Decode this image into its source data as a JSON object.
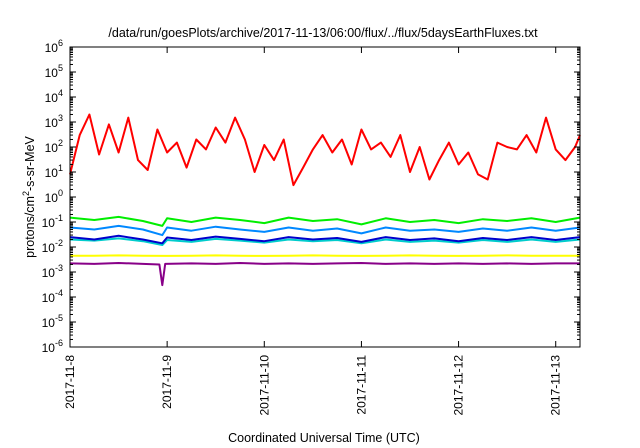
{
  "chart_data": {
    "type": "line",
    "title": "/data/run/goesPlots/archive/2017-11-13/06:00/flux/../flux/5daysEarthFluxes.txt",
    "xlabel": "Coordinated Universal Time (UTC)",
    "ylabel_parts": [
      "protons/cm",
      "2",
      "-s-sr-MeV"
    ],
    "yscale": "log",
    "ylim": [
      1e-06,
      1000000.0
    ],
    "xlim": [
      "2017-11-08",
      "2017-11-13 06:00"
    ],
    "grid": false,
    "legend": "none",
    "y_ticks": [
      {
        "value": 1e-06,
        "base": "10",
        "exp": "-6"
      },
      {
        "value": 1e-05,
        "base": "10",
        "exp": "-5"
      },
      {
        "value": 0.0001,
        "base": "10",
        "exp": "-4"
      },
      {
        "value": 0.001,
        "base": "10",
        "exp": "-3"
      },
      {
        "value": 0.01,
        "base": "10",
        "exp": "-2"
      },
      {
        "value": 0.1,
        "base": "10",
        "exp": "-1"
      },
      {
        "value": 1,
        "base": "10",
        "exp": "0"
      },
      {
        "value": 10,
        "base": "10",
        "exp": "1"
      },
      {
        "value": 100,
        "base": "10",
        "exp": "2"
      },
      {
        "value": 1000,
        "base": "10",
        "exp": "3"
      },
      {
        "value": 10000,
        "base": "10",
        "exp": "4"
      },
      {
        "value": 100000,
        "base": "10",
        "exp": "5"
      },
      {
        "value": 1000000,
        "base": "10",
        "exp": "6"
      }
    ],
    "x_ticks": [
      "2017-11-8",
      "2017-11-9",
      "2017-11-10",
      "2017-11-11",
      "2017-11-12",
      "2017-11-13"
    ],
    "x_tick_days": [
      0,
      1,
      2,
      3,
      4,
      5
    ],
    "series": [
      {
        "color": "#ff0000",
        "x": [
          0.0,
          0.1,
          0.2,
          0.3,
          0.4,
          0.5,
          0.6,
          0.7,
          0.8,
          0.9,
          1.0,
          1.1,
          1.2,
          1.3,
          1.4,
          1.5,
          1.6,
          1.7,
          1.8,
          1.9,
          2.0,
          2.1,
          2.2,
          2.3,
          2.4,
          2.5,
          2.6,
          2.7,
          2.8,
          2.9,
          3.0,
          3.1,
          3.2,
          3.3,
          3.4,
          3.5,
          3.6,
          3.7,
          3.8,
          3.9,
          4.0,
          4.1,
          4.2,
          4.3,
          4.4,
          4.5,
          4.6,
          4.7,
          4.8,
          4.9,
          5.0,
          5.1,
          5.2,
          5.25
        ],
        "y": [
          8,
          300,
          2000,
          50,
          800,
          60,
          1500,
          30,
          12,
          500,
          60,
          150,
          15,
          200,
          80,
          600,
          150,
          1500,
          200,
          10,
          120,
          30,
          200,
          3,
          15,
          80,
          300,
          60,
          200,
          20,
          500,
          80,
          150,
          40,
          300,
          10,
          100,
          5,
          30,
          150,
          20,
          60,
          8,
          5,
          150,
          100,
          80,
          300,
          60,
          1500,
          80,
          30,
          100,
          300
        ]
      },
      {
        "color": "#00ee00",
        "x": [
          0.0,
          0.25,
          0.5,
          0.75,
          0.95,
          1.0,
          1.25,
          1.5,
          1.75,
          2.0,
          2.25,
          2.5,
          2.75,
          3.0,
          3.25,
          3.5,
          3.75,
          4.0,
          4.25,
          4.5,
          4.75,
          5.0,
          5.25
        ],
        "y": [
          0.15,
          0.12,
          0.16,
          0.11,
          0.07,
          0.14,
          0.1,
          0.15,
          0.12,
          0.09,
          0.15,
          0.11,
          0.13,
          0.08,
          0.14,
          0.1,
          0.12,
          0.09,
          0.13,
          0.11,
          0.14,
          0.1,
          0.15
        ]
      },
      {
        "color": "#0088ff",
        "x": [
          0.0,
          0.25,
          0.5,
          0.75,
          0.95,
          1.0,
          1.25,
          1.5,
          1.75,
          2.0,
          2.25,
          2.5,
          2.75,
          3.0,
          3.25,
          3.5,
          3.75,
          4.0,
          4.25,
          4.5,
          4.75,
          5.0,
          5.25
        ],
        "y": [
          0.06,
          0.05,
          0.07,
          0.05,
          0.03,
          0.06,
          0.045,
          0.065,
          0.05,
          0.04,
          0.06,
          0.045,
          0.055,
          0.035,
          0.06,
          0.045,
          0.05,
          0.04,
          0.055,
          0.045,
          0.06,
          0.045,
          0.06
        ]
      },
      {
        "color": "#00cccc",
        "x": [
          0.0,
          0.25,
          0.5,
          0.75,
          0.95,
          1.0,
          1.25,
          1.5,
          1.75,
          2.0,
          2.25,
          2.5,
          2.75,
          3.0,
          3.25,
          3.5,
          3.75,
          4.0,
          4.25,
          4.5,
          4.75,
          5.0,
          5.25
        ],
        "y": [
          0.02,
          0.018,
          0.022,
          0.017,
          0.012,
          0.019,
          0.016,
          0.021,
          0.018,
          0.015,
          0.02,
          0.017,
          0.019,
          0.014,
          0.02,
          0.016,
          0.018,
          0.015,
          0.019,
          0.016,
          0.02,
          0.016,
          0.02
        ]
      },
      {
        "color": "#0000cc",
        "x": [
          0.0,
          0.25,
          0.5,
          0.75,
          0.95,
          1.0,
          1.25,
          1.5,
          1.75,
          2.0,
          2.25,
          2.5,
          2.75,
          3.0,
          3.25,
          3.5,
          3.75,
          4.0,
          4.25,
          4.5,
          4.75,
          5.0,
          5.25
        ],
        "y": [
          0.025,
          0.02,
          0.028,
          0.02,
          0.014,
          0.024,
          0.019,
          0.026,
          0.021,
          0.017,
          0.025,
          0.02,
          0.023,
          0.016,
          0.025,
          0.019,
          0.022,
          0.017,
          0.023,
          0.019,
          0.025,
          0.019,
          0.025
        ]
      },
      {
        "color": "#ffff00",
        "x": [
          0.0,
          0.25,
          0.5,
          0.75,
          1.0,
          1.25,
          1.5,
          1.75,
          2.0,
          2.25,
          2.5,
          2.75,
          3.0,
          3.25,
          3.5,
          3.75,
          4.0,
          4.25,
          4.5,
          4.75,
          5.0,
          5.25
        ],
        "y": [
          0.0045,
          0.0045,
          0.0046,
          0.0045,
          0.0044,
          0.0045,
          0.0046,
          0.0045,
          0.0044,
          0.0045,
          0.0046,
          0.0045,
          0.0044,
          0.0045,
          0.0046,
          0.0045,
          0.0044,
          0.0045,
          0.0046,
          0.0045,
          0.0045,
          0.0045
        ]
      },
      {
        "color": "#880088",
        "x": [
          0.0,
          0.25,
          0.5,
          0.75,
          0.92,
          0.95,
          0.98,
          1.25,
          1.5,
          1.75,
          2.0,
          2.25,
          2.5,
          2.75,
          3.0,
          3.25,
          3.5,
          3.75,
          4.0,
          4.25,
          4.5,
          4.75,
          5.0,
          5.25
        ],
        "y": [
          0.0022,
          0.0021,
          0.0023,
          0.0021,
          0.002,
          0.0003,
          0.0021,
          0.0022,
          0.0021,
          0.0023,
          0.0021,
          0.0022,
          0.0021,
          0.0022,
          0.0023,
          0.0021,
          0.0022,
          0.0021,
          0.0022,
          0.0021,
          0.0022,
          0.0021,
          0.0022,
          0.0022
        ]
      }
    ]
  }
}
